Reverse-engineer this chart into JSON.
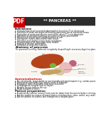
{
  "title": "** PANCREAS **",
  "header_bg": "#1a1a1a",
  "header_text_color": "#ffffff",
  "pdf_label": "PDF",
  "pdf_bg": "#cc0000",
  "body_bg": "#ffffff",
  "indications_title": "Indications",
  "indications": [
    "Characterisation of suspected abnormalities found on CT or ultrasound",
    "Detection of small size organ delineating pancreatic ductal adenocarcinoma",
    "Evaluation of acute and chronic pancreatitis when CT is not diagnostic",
    "Detection of choledocholithiasis as a cause of acute pancreatitis",
    "Detection of intralesional communication of cals",
    "Distinguish chronic pancreatitis from cancer",
    "Detection and staging of pancreatic neoplasms",
    "Characterisation of cystic pancreatic lesions",
    "Staging of chronic pancreatitis",
    "Detection of endocrine tumours"
  ],
  "anatomy_title": "Anatomy of pancreas",
  "anatomy_text": "The pancreas is a long, flattened, irregularly shaped fragile accessory digestive gland, lying behind the stomach and between the C loop of duodenum and the spleen.",
  "contraindications_title": "Contraindications",
  "contraindications": [
    "Any electrically, magnetically or mechanically activated implant (e.g. cardiac pacemakers, insulin pump bio-stimulator, neurostimulators, cochlear implant and hearing aids)",
    "Intracranial aneurysm clips (unless made of titanium)",
    "Pregnancy (risks vs benefits ratio to be assessed)",
    "Ferromagnetic surgical clips or staples",
    "Metallic foreign body in the eye",
    "Metal shrapnel or bullet"
  ],
  "patient_prep_title": "Patient preparation",
  "patient_prep": [
    "A satisfactory written consent form must be taken from the patient before entering the scanner room",
    "Ask the patient to remove all metal objects including keys, coins, wallet, any cards with magnetic strips, jewellery, hearing aid and hair pins",
    "Ask the patient to undress and change into a hospital gown"
  ],
  "contraindications_color": "#cc0000",
  "body_text_color": "#111111",
  "diagram_bg": "#f8f4f0",
  "liver_color": "#b5431a",
  "gb_color": "#7ab536",
  "stomach_color": "#e8b4b4",
  "duodenum_color": "#d4c4a0",
  "pancreas_color": "#c8a060",
  "spleen_color": "#c06080"
}
